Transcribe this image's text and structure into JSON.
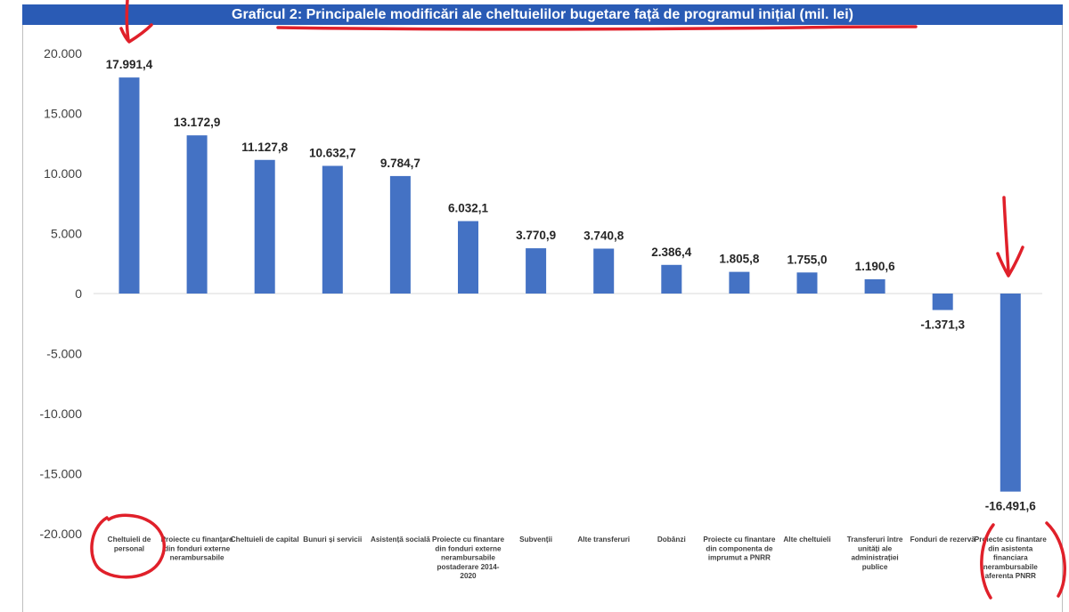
{
  "colors": {
    "bar": "#4472c4",
    "title_bg": "#2a5bb5",
    "title_text": "#ffffff",
    "annotation": "#e0202a",
    "axis_text": "#404040",
    "grid": "#d9d9d9"
  },
  "chart_data": {
    "type": "bar",
    "title": "Graficul 2: Principalele modificări ale cheltuielilor bugetare față de programul inițial (mil. lei)",
    "xlabel": "",
    "ylabel": "",
    "ylim": [
      -20000,
      20000
    ],
    "yticks": [
      20000,
      15000,
      10000,
      5000,
      0,
      -5000,
      -10000,
      -15000,
      -20000
    ],
    "ytick_labels": [
      "20.000",
      "15.000",
      "10.000",
      "5.000",
      "0",
      "-5.000",
      "-10.000",
      "-15.000",
      "-20.000"
    ],
    "grid": false,
    "legend": "none",
    "categories": [
      [
        "Cheltuieli de",
        "personal"
      ],
      [
        "Proiecte cu finanțare",
        "din fonduri externe",
        "nerambursabile"
      ],
      [
        "Cheltuieli de capital"
      ],
      [
        "Bunuri și servicii"
      ],
      [
        "Asistență socială"
      ],
      [
        "Proiecte cu finantare",
        "din fonduri externe",
        "nerambursabile",
        "postaderare 2014-",
        "2020"
      ],
      [
        "Subvenții"
      ],
      [
        "Alte transferuri"
      ],
      [
        "Dobânzi"
      ],
      [
        "Proiecte cu finantare",
        "din componenta de",
        "imprumut a PNRR"
      ],
      [
        "Alte cheltuieli"
      ],
      [
        "Transferuri între",
        "unități ale",
        "administrației",
        "publice"
      ],
      [
        "Fonduri de rezervă"
      ],
      [
        "Proiecte cu finantare",
        "din asistenta",
        "financiara",
        "nerambursabile",
        "aferenta PNRR"
      ]
    ],
    "values": [
      17991.4,
      13172.9,
      11127.8,
      10632.7,
      9784.7,
      6032.1,
      3770.9,
      3740.8,
      2386.4,
      1805.8,
      1755.0,
      1190.6,
      -1371.3,
      -16491.6
    ],
    "value_labels": [
      "17.991,4",
      "13.172,9",
      "11.127,8",
      "10.632,7",
      "9.784,7",
      "6.032,1",
      "3.770,9",
      "3.740,8",
      "2.386,4",
      "1.805,8",
      "1.755,0",
      "1.190,6",
      "-1.371,3",
      "-16.491,6"
    ],
    "annotations": [
      "arrow over first bar",
      "underline under title",
      "circle around first category label",
      "arrow over last bar",
      "circle around last category label"
    ]
  }
}
